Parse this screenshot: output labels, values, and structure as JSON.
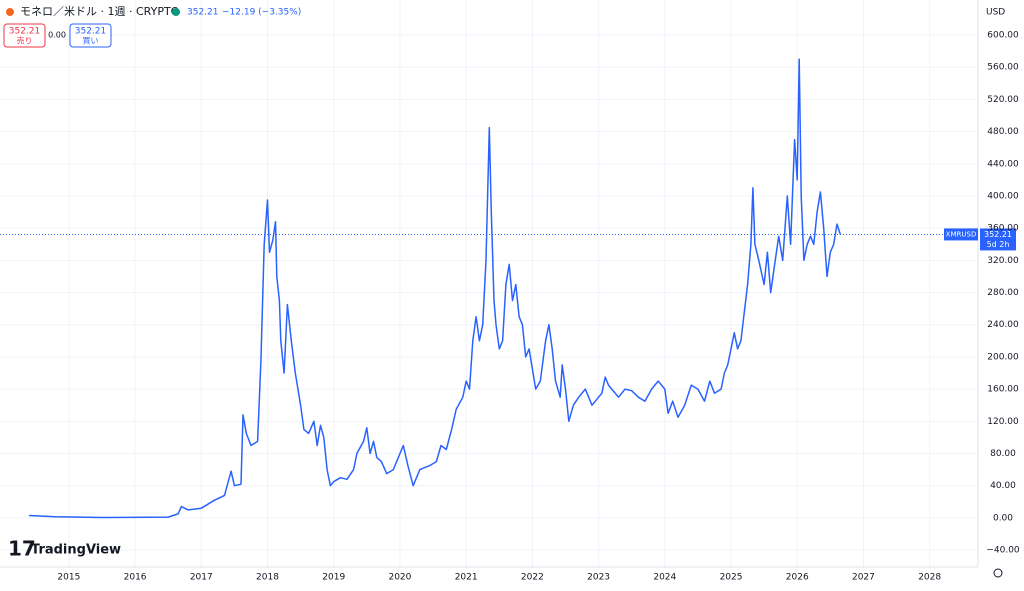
{
  "chart_data": {
    "type": "line",
    "title": "モネロ／米ドル · 1週 · CRYPTO",
    "currency": "USD",
    "symbol": "XMRUSD",
    "last_price": 352.21,
    "change_text": "−12.19 (−3.35%)",
    "countdown": "5d 2h",
    "sell_label": "売り",
    "buy_label": "買い",
    "spread": "0.00",
    "brand": "TradingView",
    "x": [
      2014.4,
      2014.8,
      2015.5,
      2016.5,
      2016.65,
      2016.7,
      2016.8,
      2017.0,
      2017.2,
      2017.35,
      2017.45,
      2017.5,
      2017.6,
      2017.63,
      2017.68,
      2017.75,
      2017.85,
      2017.9,
      2017.95,
      2018.0,
      2018.03,
      2018.08,
      2018.12,
      2018.14,
      2018.18,
      2018.2,
      2018.25,
      2018.3,
      2018.36,
      2018.42,
      2018.5,
      2018.55,
      2018.62,
      2018.7,
      2018.75,
      2018.8,
      2018.85,
      2018.9,
      2018.95,
      2019.0,
      2019.1,
      2019.2,
      2019.3,
      2019.35,
      2019.45,
      2019.5,
      2019.55,
      2019.6,
      2019.65,
      2019.72,
      2019.8,
      2019.9,
      2020.05,
      2020.12,
      2020.2,
      2020.3,
      2020.45,
      2020.55,
      2020.62,
      2020.7,
      2020.78,
      2020.85,
      2020.95,
      2021.0,
      2021.05,
      2021.1,
      2021.15,
      2021.2,
      2021.25,
      2021.3,
      2021.35,
      2021.38,
      2021.42,
      2021.45,
      2021.5,
      2021.55,
      2021.6,
      2021.65,
      2021.7,
      2021.75,
      2021.8,
      2021.85,
      2021.9,
      2021.95,
      2022.05,
      2022.12,
      2022.2,
      2022.25,
      2022.3,
      2022.35,
      2022.42,
      2022.45,
      2022.5,
      2022.55,
      2022.62,
      2022.7,
      2022.8,
      2022.9,
      2023.0,
      2023.05,
      2023.1,
      2023.15,
      2023.2,
      2023.3,
      2023.4,
      2023.5,
      2023.6,
      2023.7,
      2023.8,
      2023.9,
      2024.0,
      2024.05,
      2024.12,
      2024.2,
      2024.3,
      2024.4,
      2024.5,
      2024.6,
      2024.68,
      2024.75,
      2024.85,
      2024.9,
      2024.95,
      2025.0,
      2025.05,
      2025.1,
      2025.15,
      2025.25,
      2025.3,
      2025.33,
      2025.36,
      2025.42,
      2025.5,
      2025.55,
      2025.6,
      2025.65,
      2025.72,
      2025.78,
      2025.85,
      2025.9,
      2025.96,
      2026.0,
      2026.03,
      2026.06,
      2026.1,
      2026.15,
      2026.2,
      2026.25,
      2026.3,
      2026.35,
      2026.4,
      2026.45,
      2026.5,
      2026.55,
      2026.6,
      2026.65
    ],
    "series": [
      {
        "name": "XMRUSD",
        "color": "#2962ff",
        "values": [
          3,
          1.5,
          0.5,
          1,
          5,
          14,
          10,
          12,
          22,
          28,
          58,
          40,
          42,
          128,
          105,
          90,
          95,
          195,
          340,
          395,
          330,
          345,
          368,
          300,
          270,
          220,
          180,
          265,
          220,
          180,
          140,
          110,
          105,
          120,
          90,
          115,
          100,
          60,
          40,
          45,
          50,
          48,
          60,
          80,
          95,
          112,
          80,
          95,
          75,
          70,
          55,
          60,
          90,
          65,
          40,
          60,
          65,
          70,
          90,
          85,
          110,
          135,
          150,
          170,
          160,
          220,
          250,
          220,
          240,
          320,
          485,
          380,
          270,
          240,
          210,
          220,
          290,
          315,
          270,
          290,
          250,
          240,
          200,
          210,
          160,
          170,
          220,
          240,
          210,
          170,
          150,
          190,
          160,
          120,
          140,
          150,
          160,
          140,
          150,
          155,
          175,
          165,
          160,
          150,
          160,
          158,
          150,
          145,
          160,
          170,
          160,
          130,
          145,
          125,
          140,
          165,
          160,
          145,
          170,
          155,
          160,
          180,
          190,
          210,
          230,
          210,
          220,
          290,
          340,
          410,
          340,
          320,
          290,
          330,
          280,
          310,
          350,
          320,
          400,
          340,
          470,
          420,
          570,
          400,
          320,
          340,
          350,
          340,
          380,
          405,
          360,
          300,
          330,
          340,
          365,
          352.21
        ]
      }
    ],
    "xlim": [
      2013.96,
      2028.73
    ],
    "xticks": [
      2015,
      2016,
      2017,
      2018,
      2019,
      2020,
      2021,
      2022,
      2023,
      2024,
      2025,
      2026,
      2027,
      2028
    ],
    "ylim": [
      -61,
      643.5
    ],
    "yticks": [
      {
        "value": -40,
        "label": "−40.00"
      },
      {
        "value": 0,
        "label": "0.00"
      },
      {
        "value": 40,
        "label": "40.00"
      },
      {
        "value": 80,
        "label": "80.00"
      },
      {
        "value": 120,
        "label": "120.00"
      },
      {
        "value": 160,
        "label": "160.00"
      },
      {
        "value": 200,
        "label": "200.00"
      },
      {
        "value": 240,
        "label": "240.00"
      },
      {
        "value": 280,
        "label": "280.00"
      },
      {
        "value": 320,
        "label": "320.00"
      },
      {
        "value": 360,
        "label": "360.00"
      },
      {
        "value": 400,
        "label": "400.00"
      },
      {
        "value": 440,
        "label": "440.00"
      },
      {
        "value": 480,
        "label": "480.00"
      },
      {
        "value": 520,
        "label": "520.00"
      },
      {
        "value": 560,
        "label": "560.00"
      },
      {
        "value": 600,
        "label": "600.00"
      }
    ],
    "grid": true
  }
}
